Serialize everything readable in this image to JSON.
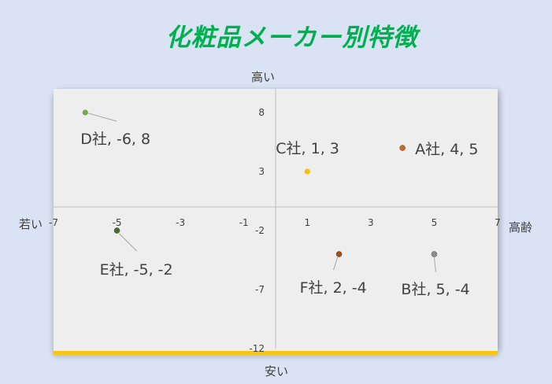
{
  "title": "化粧品メーカー別特徴",
  "chart_data": {
    "type": "scatter",
    "title": "化粧品メーカー別特徴",
    "axis_words": {
      "top": "高い",
      "bottom": "安い",
      "left": "若い",
      "right": "高齢"
    },
    "xlim": [
      -7,
      7
    ],
    "ylim": [
      -12,
      10
    ],
    "x_ticks": [
      -7,
      -5,
      -3,
      -1,
      1,
      3,
      5,
      7
    ],
    "y_ticks": [
      8,
      3,
      -2,
      -7,
      -12
    ],
    "grid": false,
    "points": [
      {
        "name": "A社",
        "x": 4,
        "y": 5,
        "label": "A社, 4, 5",
        "color": "#ed7d31",
        "pattern": true,
        "label_pos": "right"
      },
      {
        "name": "B社",
        "x": 5,
        "y": -4,
        "label": "B社, 5, -4",
        "color": "#a5a5a5",
        "pattern": true,
        "label_pos": "below"
      },
      {
        "name": "C社",
        "x": 1,
        "y": 3,
        "label": "C社, 1, 3",
        "color": "#ffc000",
        "pattern": false,
        "label_pos": "above"
      },
      {
        "name": "D社",
        "x": -6,
        "y": 8,
        "label": "D社, -6, 8",
        "color": "#70ad47",
        "pattern": false,
        "label_pos": "below"
      },
      {
        "name": "E社",
        "x": -5,
        "y": -2,
        "label": "E社, -5, -2",
        "color": "#548235",
        "pattern": true,
        "label_pos": "below"
      },
      {
        "name": "F社",
        "x": 2,
        "y": -4,
        "label": "F社, 2, -4",
        "color": "#c55a11",
        "pattern": true,
        "label_pos": "below"
      }
    ]
  }
}
